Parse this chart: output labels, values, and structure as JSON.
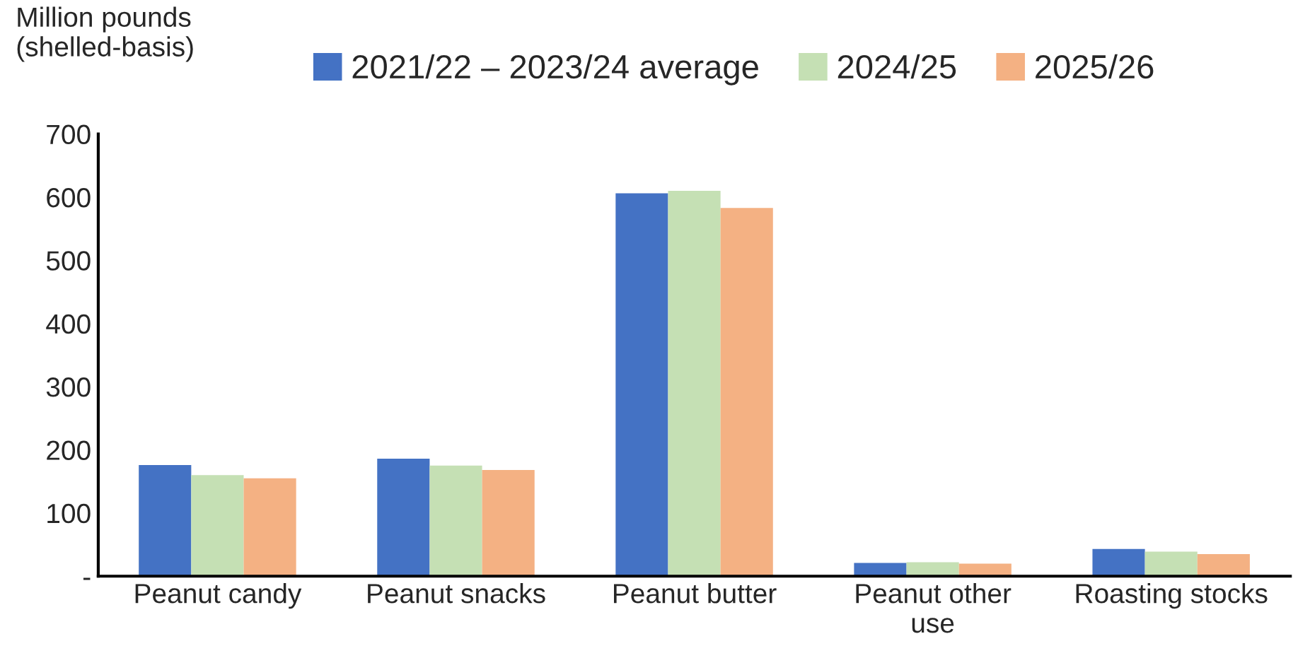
{
  "chart_data": {
    "type": "bar",
    "ylabel": "Million pounds\n(shelled-basis)",
    "categories": [
      "Peanut candy",
      "Peanut snacks",
      "Peanut butter",
      "Peanut other\nuse",
      "Roasting stocks"
    ],
    "series": [
      {
        "name": "2021/22 – 2023/24 average",
        "color": "#4472c4",
        "values": [
          176,
          186,
          606,
          21,
          43
        ]
      },
      {
        "name": "2024/25",
        "color": "#c5e0b4",
        "values": [
          160,
          175,
          610,
          22,
          39
        ]
      },
      {
        "name": "2025/26",
        "color": "#f4b183",
        "values": [
          155,
          168,
          583,
          20,
          35
        ]
      }
    ],
    "ylim": [
      0,
      700
    ],
    "yticks": [
      {
        "value": 0,
        "label": "-"
      },
      100,
      200,
      300,
      400,
      500,
      600,
      700
    ],
    "grid": false,
    "legend": "top"
  }
}
